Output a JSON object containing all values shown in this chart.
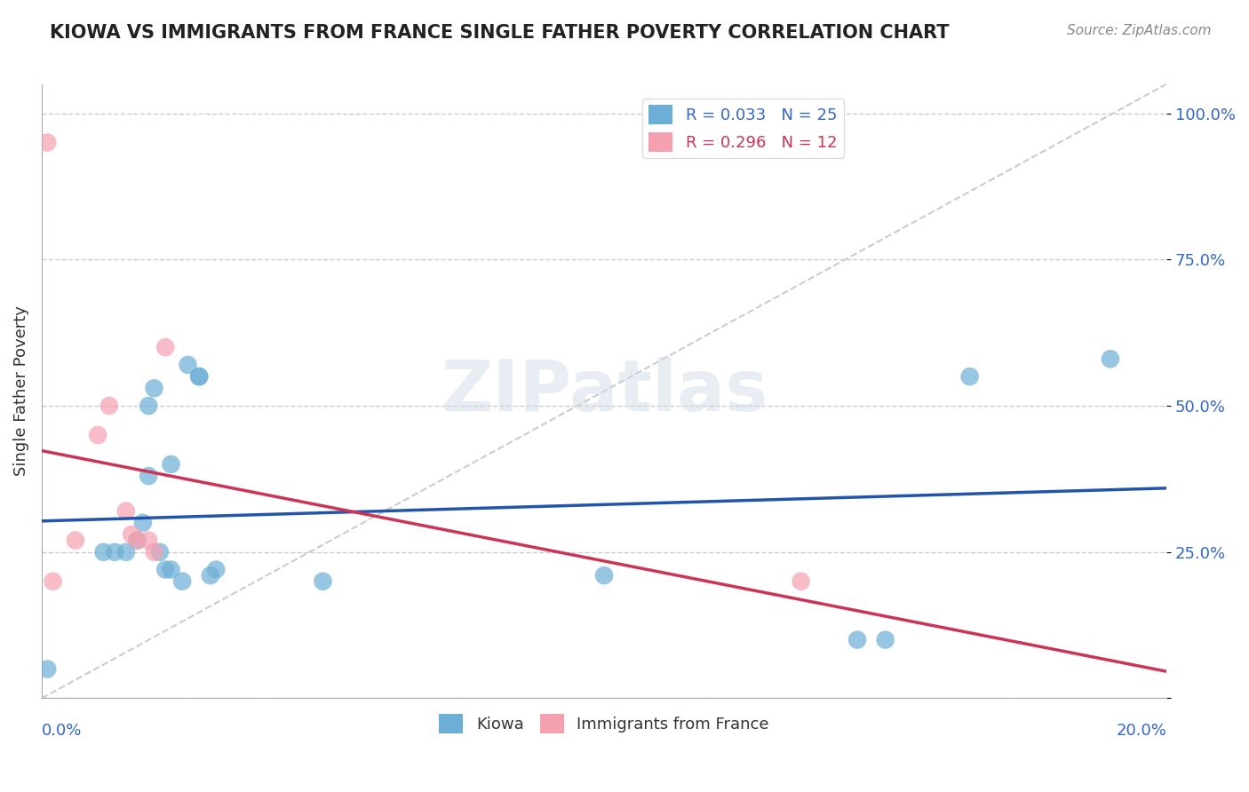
{
  "title": "KIOWA VS IMMIGRANTS FROM FRANCE SINGLE FATHER POVERTY CORRELATION CHART",
  "source_text": "Source: ZipAtlas.com",
  "ylabel": "Single Father Poverty",
  "yticks": [
    0.0,
    0.25,
    0.5,
    0.75,
    1.0
  ],
  "ytick_labels": [
    "",
    "25.0%",
    "50.0%",
    "75.0%",
    "100.0%"
  ],
  "kiowa_color": "#6baed6",
  "france_color": "#f4a0b0",
  "trendline_kiowa_color": "#2255aa",
  "trendline_france_color": "#cc3355",
  "diagonal_color": "#cccccc",
  "background_color": "#ffffff",
  "grid_color": "#cccccc",
  "kiowa_x": [
    0.001,
    0.011,
    0.013,
    0.015,
    0.017,
    0.018,
    0.019,
    0.019,
    0.02,
    0.021,
    0.022,
    0.023,
    0.023,
    0.025,
    0.026,
    0.028,
    0.028,
    0.03,
    0.031,
    0.05,
    0.1,
    0.145,
    0.15,
    0.165,
    0.19
  ],
  "kiowa_y": [
    0.05,
    0.25,
    0.25,
    0.25,
    0.27,
    0.3,
    0.38,
    0.5,
    0.53,
    0.25,
    0.22,
    0.22,
    0.4,
    0.2,
    0.57,
    0.55,
    0.55,
    0.21,
    0.22,
    0.2,
    0.21,
    0.1,
    0.1,
    0.55,
    0.58
  ],
  "france_x": [
    0.001,
    0.002,
    0.006,
    0.01,
    0.012,
    0.015,
    0.016,
    0.017,
    0.019,
    0.02,
    0.022,
    0.135
  ],
  "france_y": [
    0.95,
    0.2,
    0.27,
    0.45,
    0.5,
    0.32,
    0.28,
    0.27,
    0.27,
    0.25,
    0.6,
    0.2
  ],
  "xmin": 0.0,
  "xmax": 0.2,
  "ymin": 0.0,
  "ymax": 1.05
}
